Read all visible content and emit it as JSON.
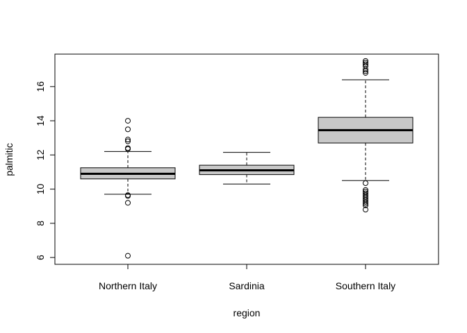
{
  "chart_data": {
    "type": "box",
    "title": "",
    "xlabel": "region",
    "ylabel": "palmitic",
    "ylim": [
      5.6,
      17.9
    ],
    "yticks": [
      6,
      8,
      10,
      12,
      14,
      16
    ],
    "grid": false,
    "legend": "none",
    "box_fill": "#c8c8c8",
    "categories": [
      "Northern Italy",
      "Sardinia",
      "Southern Italy"
    ],
    "boxes": [
      {
        "category": "Northern Italy",
        "whisker_low": 9.7,
        "q1": 10.6,
        "median": 10.9,
        "q3": 11.25,
        "whisker_high": 12.2,
        "outliers": [
          14.0,
          13.5,
          12.9,
          12.8,
          12.4,
          12.35,
          9.65,
          9.6,
          9.2,
          6.1
        ]
      },
      {
        "category": "Sardinia",
        "whisker_low": 10.3,
        "q1": 10.85,
        "median": 11.1,
        "q3": 11.4,
        "whisker_high": 12.15,
        "outliers": []
      },
      {
        "category": "Southern Italy",
        "whisker_low": 10.5,
        "q1": 12.7,
        "median": 13.45,
        "q3": 14.2,
        "whisker_high": 16.4,
        "outliers": [
          17.5,
          17.4,
          17.3,
          17.2,
          17.0,
          16.9,
          16.8,
          10.35,
          9.95,
          9.85,
          9.75,
          9.65,
          9.55,
          9.45,
          9.35,
          9.25,
          9.15,
          9.05,
          8.8
        ]
      }
    ]
  }
}
